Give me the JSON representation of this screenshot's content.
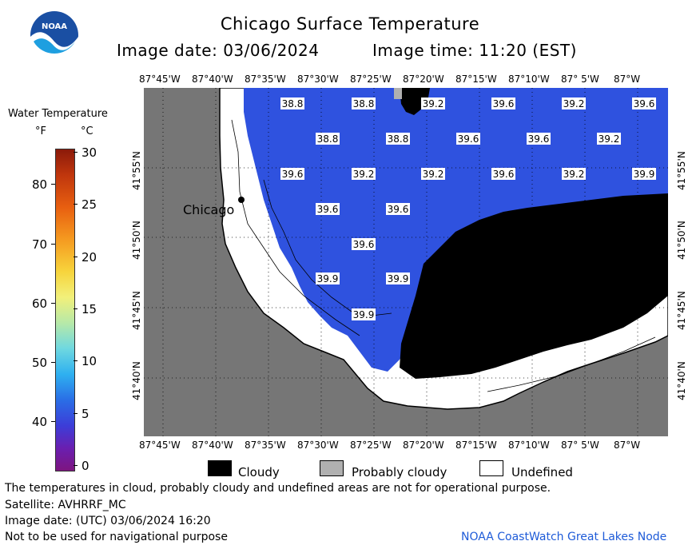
{
  "header": {
    "title": "Chicago Surface Temperature",
    "image_date": "Image date: 03/06/2024",
    "image_time": "Image time: 11:20 (EST)",
    "logo_text": "NOAA"
  },
  "colorbar": {
    "title": "Water Temperature",
    "unit_f": "°F",
    "unit_c": "°C",
    "f_ticks": [
      "80",
      "70",
      "60",
      "50",
      "40"
    ],
    "c_ticks": [
      "30",
      "25",
      "20",
      "15",
      "10",
      "5",
      "0"
    ]
  },
  "map": {
    "lon_labels": [
      "87°45'W",
      "87°40'W",
      "87°35'W",
      "87°30'W",
      "87°25'W",
      "87°20'W",
      "87°15'W",
      "87°10'W",
      "87° 5'W",
      "87°W"
    ],
    "lat_labels": [
      "41°55'N",
      "41°50'N",
      "41°45'N",
      "41°40'N"
    ],
    "city_label": "Chicago",
    "temperatures": [
      "38.8",
      "38.8",
      "39.2",
      "39.6",
      "39.2",
      "39.6",
      "38.8",
      "38.8",
      "39.6",
      "39.6",
      "39.2",
      "39.6",
      "39.2",
      "39.2",
      "39.6",
      "39.2",
      "39.9",
      "39.6",
      "39.6",
      "39.6",
      "39.9",
      "39.9",
      "39.9"
    ],
    "colors": {
      "land": "#767676",
      "water": "#2f52df",
      "cloud": "#000000",
      "undefined": "#ffffff"
    }
  },
  "legend": {
    "cloudy": "Cloudy",
    "probably_cloudy": "Probably cloudy",
    "undefined": "Undefined"
  },
  "footer": {
    "note": "The temperatures in cloud, probably cloudy and undefined areas are not for operational purpose.",
    "satellite": "Satellite: AVHRRF_MC",
    "utc_date": "Image date: (UTC) 03/06/2024  16:20",
    "nav_warning": "Not to be used for navigational purpose",
    "credit": "NOAA CoastWatch Great Lakes Node"
  }
}
